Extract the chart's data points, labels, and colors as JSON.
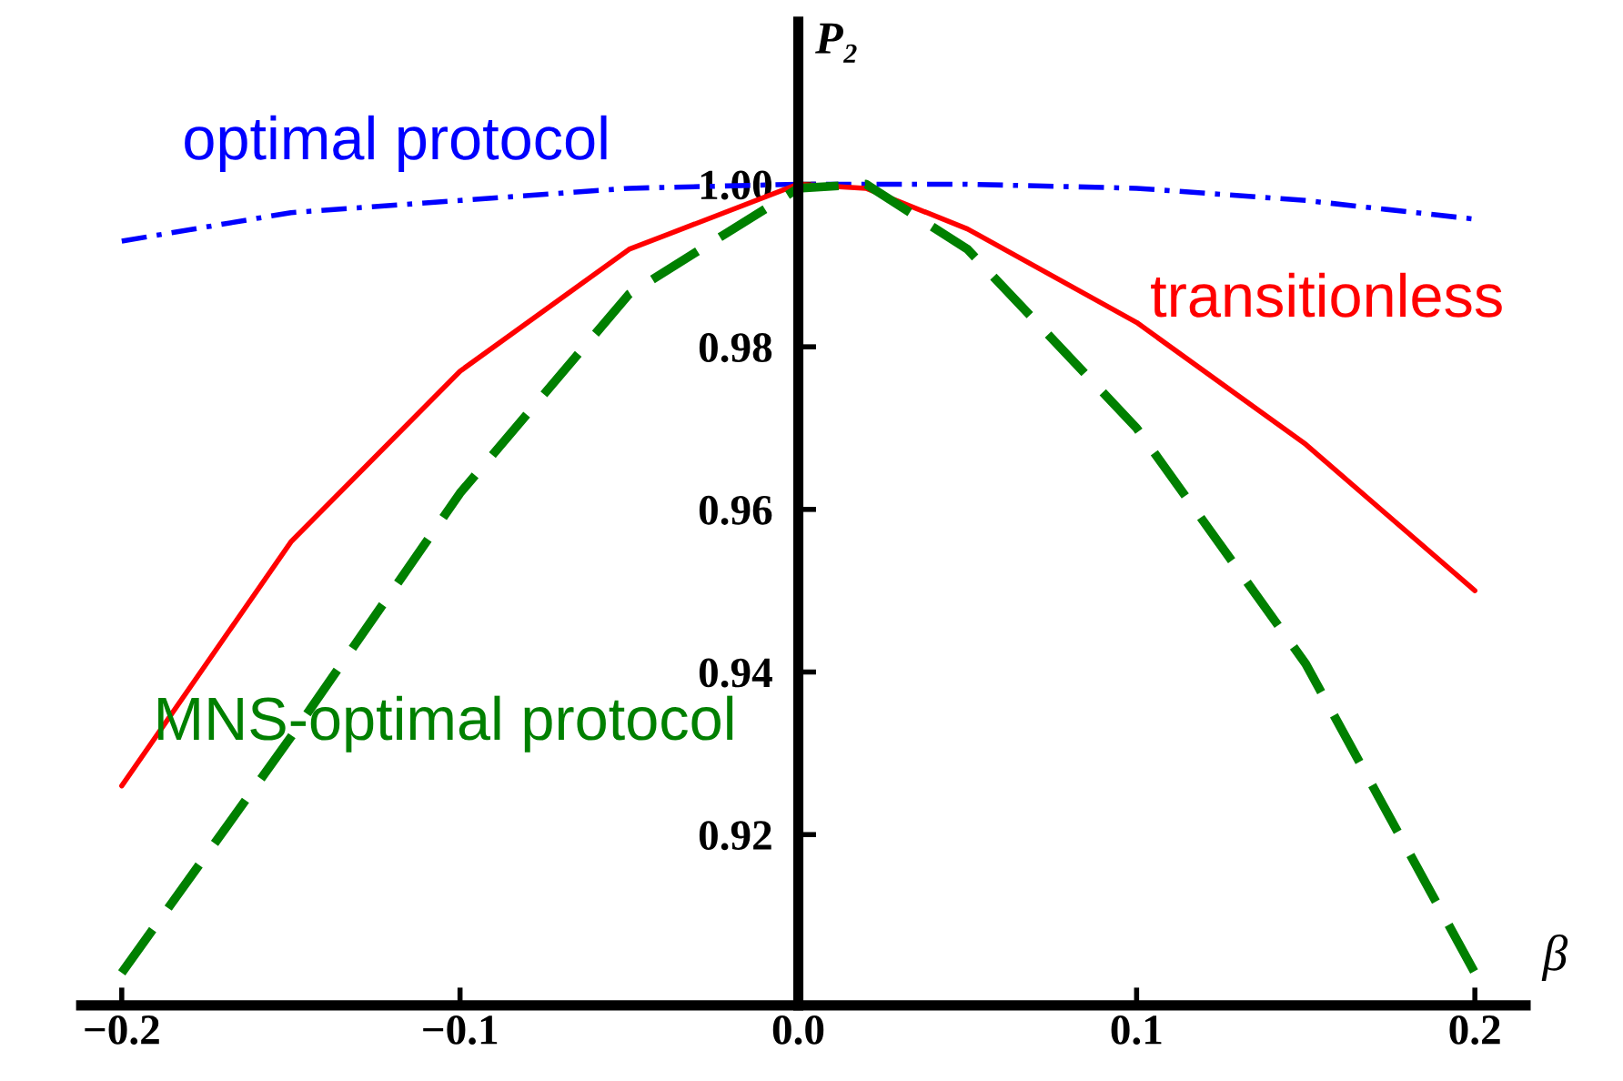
{
  "chart_data": {
    "type": "line",
    "xlabel": "β",
    "ylabel": "P₂",
    "x": [
      -0.2,
      -0.15,
      -0.1,
      -0.05,
      0,
      0.02,
      0.05,
      0.1,
      0.15,
      0.2
    ],
    "series": [
      {
        "name": "optimal protocol",
        "color": "#0000ff",
        "line_style": "dashdot",
        "values": [
          0.993,
          0.9965,
          0.998,
          0.9995,
          1.0,
          1.0,
          1.0,
          0.9995,
          0.998,
          0.9957
        ]
      },
      {
        "name": "transitionless",
        "color": "#ff0000",
        "line_style": "solid",
        "values": [
          0.926,
          0.956,
          0.977,
          0.992,
          1.0,
          0.9995,
          0.9945,
          0.983,
          0.968,
          0.95
        ]
      },
      {
        "name": "MNS-optimal protocol",
        "color": "#008000",
        "line_style": "dashed",
        "values": [
          0.903,
          0.932,
          0.962,
          0.9865,
          0.9995,
          1.0,
          0.992,
          0.97,
          0.941,
          0.903
        ]
      }
    ],
    "xlim": [
      -0.212,
      0.215
    ],
    "ylim": [
      0.899,
      1.02
    ],
    "xticks": [
      {
        "value": -0.2,
        "label": "−0.2"
      },
      {
        "value": -0.1,
        "label": "−0.1"
      },
      {
        "value": 0,
        "label": "0.0"
      },
      0.1,
      0.2
    ],
    "yticks": [
      0.92,
      0.94,
      0.96,
      0.98,
      {
        "value": 1.0,
        "label": "1.00"
      }
    ],
    "grid": false,
    "legend": false,
    "marker": "none"
  }
}
